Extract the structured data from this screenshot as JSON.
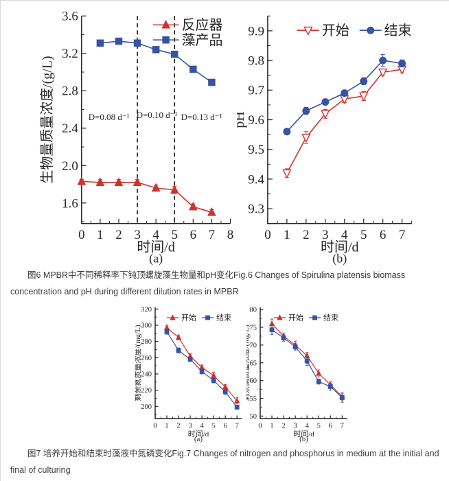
{
  "page": {
    "background": "#ffffff",
    "border_color": "#d9d9d9"
  },
  "colors": {
    "series_red": "#cf3330",
    "series_blue": "#3753a4",
    "axis": "#222222",
    "caption_text": "#3d3d3d",
    "dashed_line": "#111111"
  },
  "figure6": {
    "caption": "图6 MPBR中不同稀释率下钝顶螺旋藻生物量和pH变化Fig.6 Changes of Spirulina platensis biomass concentration and pH during different dilution rates in MPBR"
  },
  "figure7": {
    "caption": "图7 培养开始和结束时藻液中氮磷变化Fig.7 Changes of nitrogen and phosphorus in medium at the initial and final of culturing"
  },
  "chart_data": [
    {
      "id": "fig6a",
      "type": "line",
      "title": "",
      "panel_label": "(a)",
      "xlabel": "时间/d",
      "ylabel": "生物量质量浓度/(g/L)",
      "xlim": [
        0,
        8
      ],
      "ylim": [
        1.38,
        3.6
      ],
      "xticks": [
        0,
        1,
        2,
        3,
        4,
        5,
        6,
        7,
        8
      ],
      "yticks": [
        1.6,
        2.0,
        2.4,
        2.8,
        3.2,
        3.6
      ],
      "x_minor_step": 0.5,
      "y_minor_step": 0.2,
      "y_decimals": 1,
      "grid": false,
      "legend_position": "top-right-inside",
      "series": [
        {
          "name": "反应器",
          "color": "#cf3330",
          "marker": "triangle-up",
          "fill": true,
          "x": [
            0,
            1,
            2,
            3,
            4,
            5,
            6,
            7
          ],
          "y": [
            1.83,
            1.82,
            1.82,
            1.82,
            1.76,
            1.74,
            1.56,
            1.5
          ],
          "yerr": [
            0.02,
            0.03,
            0.03,
            0.03,
            0.03,
            0.04,
            0.03,
            0.03
          ]
        },
        {
          "name": "藻产品",
          "color": "#3753a4",
          "marker": "square",
          "fill": true,
          "x": [
            1,
            2,
            3,
            4,
            5,
            6,
            7
          ],
          "y": [
            3.31,
            3.33,
            3.31,
            3.24,
            3.19,
            3.03,
            2.89
          ],
          "yerr": [
            0.02,
            0.02,
            0.02,
            0.03,
            0.02,
            0.02,
            0.02
          ]
        }
      ],
      "vlines": [
        {
          "x": 3,
          "style": "dashed"
        },
        {
          "x": 5,
          "style": "dashed"
        }
      ],
      "annotations": [
        {
          "text": "D=0.08 d⁻¹",
          "x": 1.47,
          "y": 2.52
        },
        {
          "text": "D=0.10 d⁻¹",
          "x": 4.05,
          "y": 2.54
        },
        {
          "text": "D=0.13 d⁻¹",
          "x": 6.45,
          "y": 2.52
        }
      ]
    },
    {
      "id": "fig6b",
      "type": "line",
      "title": "",
      "panel_label": "(b)",
      "xlabel": "时间/d",
      "ylabel": "pH",
      "xlim": [
        0,
        7.5
      ],
      "ylim": [
        9.25,
        9.95
      ],
      "xticks": [
        0,
        1,
        2,
        3,
        4,
        5,
        6,
        7
      ],
      "yticks": [
        9.3,
        9.4,
        9.5,
        9.6,
        9.7,
        9.8,
        9.9
      ],
      "x_minor_step": 0.5,
      "y_minor_step": 0.05,
      "y_decimals": 1,
      "grid": false,
      "legend_position": "top-center-inside",
      "series": [
        {
          "name": "开始",
          "color": "#cf3330",
          "marker": "triangle-down",
          "fill": false,
          "x": [
            1,
            2,
            3,
            4,
            5,
            6,
            7
          ],
          "y": [
            9.42,
            9.54,
            9.62,
            9.67,
            9.68,
            9.76,
            9.77
          ],
          "yerr": [
            0.015,
            0.02,
            0.015,
            0.012,
            0.015,
            0.01,
            0.012
          ]
        },
        {
          "name": "结束",
          "color": "#3753a4",
          "marker": "circle",
          "fill": true,
          "x": [
            1,
            2,
            3,
            4,
            5,
            6,
            7
          ],
          "y": [
            9.56,
            9.63,
            9.66,
            9.69,
            9.73,
            9.8,
            9.79
          ],
          "yerr": [
            0.01,
            0.012,
            0.008,
            0.01,
            0.012,
            0.02,
            0.012
          ]
        }
      ],
      "vlines": [],
      "annotations": []
    },
    {
      "id": "fig7a",
      "type": "line",
      "title": "",
      "panel_label": "(a)",
      "xlabel": "时间/d",
      "ylabel": "剩余氮质量浓度/(mg/L)",
      "xlim": [
        0,
        7.4
      ],
      "ylim": [
        185,
        322
      ],
      "xticks": [
        0,
        1,
        2,
        3,
        4,
        5,
        6,
        7
      ],
      "yticks": [
        200,
        220,
        240,
        260,
        280,
        300,
        320
      ],
      "x_minor_step": 0.5,
      "y_minor_step": 10,
      "y_decimals": 0,
      "grid": false,
      "legend_position": "top-center-inside",
      "series": [
        {
          "name": "开始",
          "color": "#cf3330",
          "marker": "triangle-up",
          "fill": true,
          "x": [
            1,
            2,
            3,
            4,
            5,
            6,
            7
          ],
          "y": [
            297,
            285,
            262,
            248,
            238,
            224,
            207
          ],
          "yerr": [
            3,
            3,
            3,
            3,
            4,
            3,
            4
          ]
        },
        {
          "name": "结束",
          "color": "#3753a4",
          "marker": "square",
          "fill": true,
          "x": [
            1,
            2,
            3,
            4,
            5,
            6,
            7
          ],
          "y": [
            292,
            269,
            258,
            243,
            232,
            218,
            199
          ],
          "yerr": [
            3,
            3,
            2,
            3,
            3,
            3,
            2
          ]
        }
      ],
      "vlines": [],
      "annotations": []
    },
    {
      "id": "fig7b",
      "type": "line",
      "title": "",
      "panel_label": "(b)",
      "xlabel": "时间/d",
      "ylabel": "剩余磷质量浓度/(mg/L)",
      "xlim": [
        0,
        7.45
      ],
      "ylim": [
        49.3,
        80.6
      ],
      "xticks": [
        0,
        1,
        2,
        3,
        4,
        5,
        6,
        7
      ],
      "yticks": [
        50,
        55,
        60,
        65,
        70,
        75,
        80
      ],
      "x_minor_step": 0.5,
      "y_minor_step": 2.5,
      "y_decimals": 0,
      "grid": false,
      "legend_position": "top-center-inside",
      "series": [
        {
          "name": "开始",
          "color": "#cf3330",
          "marker": "triangle-up",
          "fill": true,
          "x": [
            1,
            2,
            3,
            4,
            5,
            6,
            7
          ],
          "y": [
            76,
            72.5,
            70,
            67,
            62,
            58.8,
            55.5
          ],
          "yerr": [
            1.3,
            0.9,
            1.1,
            0.9,
            1.0,
            0.9,
            1.0
          ]
        },
        {
          "name": "结束",
          "color": "#3753a4",
          "marker": "square",
          "fill": true,
          "x": [
            1,
            2,
            3,
            4,
            5,
            6,
            7
          ],
          "y": [
            74.3,
            72,
            69.5,
            65.5,
            59.7,
            58.3,
            55.2
          ],
          "yerr": [
            1.3,
            0.9,
            0.9,
            1.2,
            0.7,
            1.0,
            1.3
          ]
        }
      ],
      "vlines": [],
      "annotations": []
    }
  ]
}
